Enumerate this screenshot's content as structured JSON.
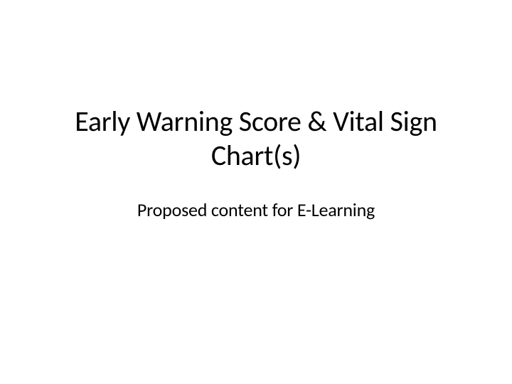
{
  "slide": {
    "title": "Early Warning Score & Vital Sign Chart(s)",
    "subtitle": "Proposed content for E-Learning",
    "background_color": "#ffffff",
    "title_color": "#000000",
    "title_fontsize": 40,
    "subtitle_color": "#000000",
    "subtitle_fontsize": 26
  }
}
